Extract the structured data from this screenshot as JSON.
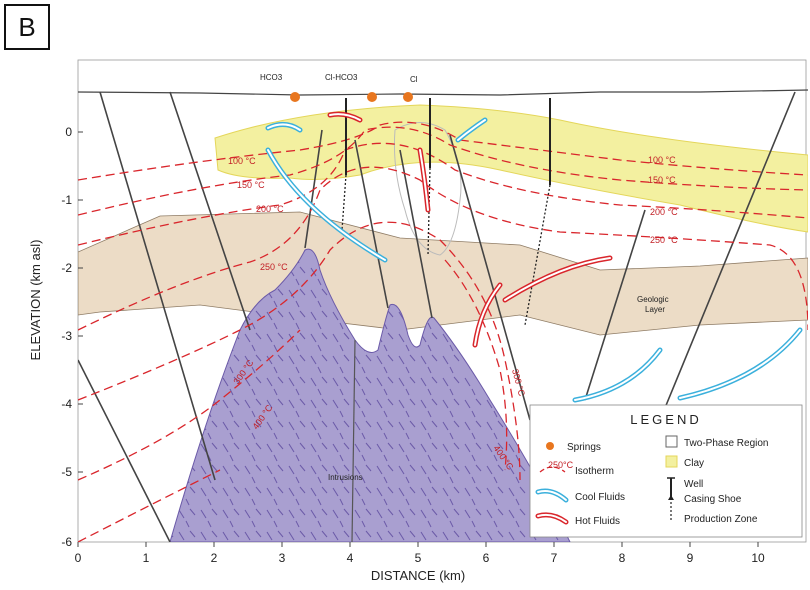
{
  "panel_label": "B",
  "axes": {
    "xlabel": "DISTANCE (km)",
    "ylabel": "ELEVATION (km asl)",
    "xticks": [
      "0",
      "1",
      "2",
      "3",
      "4",
      "5",
      "6",
      "7",
      "8",
      "9",
      "10"
    ],
    "yticks": [
      "0",
      "-1",
      "-2",
      "-3",
      "-4",
      "-5",
      "-6"
    ]
  },
  "springs": {
    "hco3": "HCO3",
    "clhco3": "Cl-HCO3",
    "cl": "Cl"
  },
  "isotherms": {
    "t100": "100 °C",
    "t150": "150 °C",
    "t200": "200 °C",
    "t250": "250 °C",
    "t300": "300 °C",
    "t400": "400 °C"
  },
  "labels": {
    "geologic_layer_1": "Geologic",
    "geologic_layer_2": "Layer",
    "intrusions": "Intrusions"
  },
  "legend": {
    "title": "LEGEND",
    "springs": "Springs",
    "isotherm": "Isotherm",
    "isotherm_sample": "250°C",
    "cool_fluids": "Cool Fluids",
    "hot_fluids": "Hot Fluids",
    "two_phase": "Two-Phase Region",
    "clay": "Clay",
    "well": "Well",
    "casing_shoe": "Casing Shoe",
    "production_zone": "Production Zone"
  },
  "colors": {
    "clay": "#f3f0a0",
    "layer": "#ecdcc6",
    "intrusion": "#a99fd0",
    "isotherm": "#d9262c",
    "cool": "#3bb0dc",
    "hot": "#d9262c",
    "spring": "#e8761f"
  }
}
